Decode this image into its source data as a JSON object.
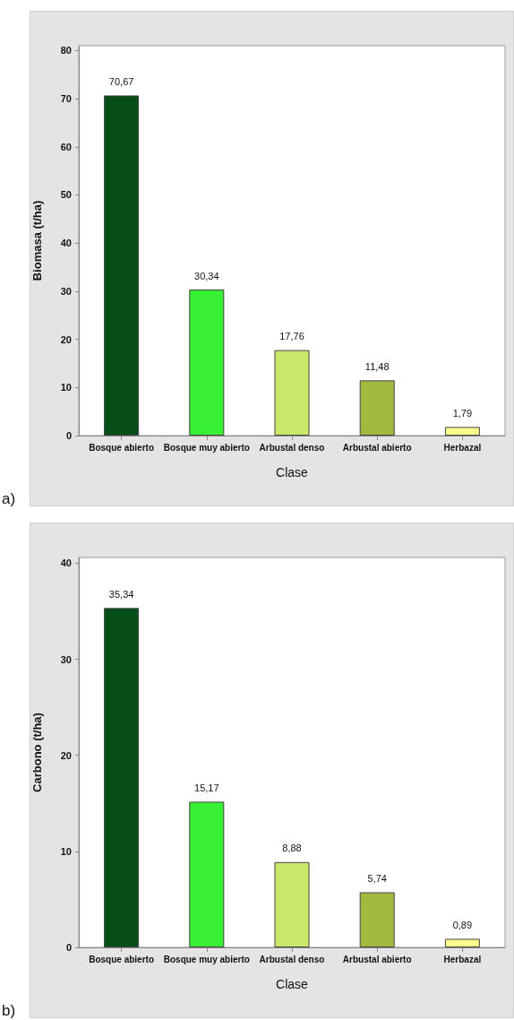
{
  "chart_data": [
    {
      "type": "bar",
      "categories": [
        "Bosque abierto",
        "Bosque muy abierto",
        "Arbustal denso",
        "Arbustal abierto",
        "Herbazal"
      ],
      "xlabel": "Clase",
      "ylabel": "Biomasa (t/ha)",
      "values": [
        70.67,
        30.34,
        17.76,
        11.48,
        1.79
      ],
      "colors": [
        "#064e17",
        "#38f036",
        "#c9e86a",
        "#9fba3c",
        "#fdfd8e"
      ],
      "value_labels": [
        "70,67",
        "30,34",
        "17,76",
        "11,48",
        "1,79"
      ],
      "ylim": [
        0,
        81
      ],
      "yticks": [
        0,
        10,
        20,
        30,
        40,
        50,
        60,
        70,
        80
      ],
      "grid": false,
      "annotations": [
        "a)"
      ]
    },
    {
      "type": "bar",
      "categories": [
        "Bosque abierto",
        "Bosque muy abierto",
        "Arbustal denso",
        "Arbustal abierto",
        "Herbazal"
      ],
      "xlabel": "Clase",
      "ylabel": "Carbono (t/ha)",
      "values": [
        35.34,
        15.17,
        8.88,
        5.74,
        0.89
      ],
      "colors": [
        "#064e17",
        "#38f036",
        "#c9e86a",
        "#9fba3c",
        "#fdfd8e"
      ],
      "value_labels": [
        "35,34",
        "15,17",
        "8,88",
        "5,74",
        "0,89"
      ],
      "ylim": [
        0,
        40.6
      ],
      "yticks": [
        0,
        10,
        20,
        30,
        40
      ],
      "grid": false,
      "annotations": [
        "b)"
      ]
    }
  ]
}
